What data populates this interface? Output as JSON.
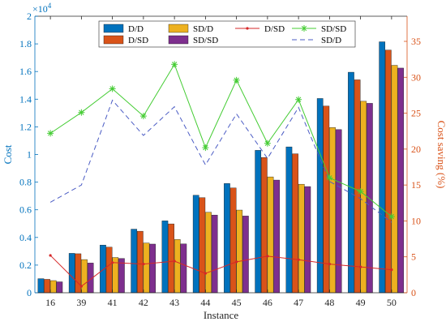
{
  "chart_data": {
    "type": "bar",
    "categories": [
      "16",
      "39",
      "41",
      "42",
      "43",
      "44",
      "45",
      "46",
      "47",
      "48",
      "49",
      "50"
    ],
    "xlabel": "Instance",
    "ylabel_left": "Cost",
    "ylabel_right": "Cost saving (%)",
    "left_axis": {
      "ylim": [
        0,
        20000
      ],
      "ticks": [
        0,
        2000,
        4000,
        6000,
        8000,
        10000,
        12000,
        14000,
        16000,
        18000,
        20000
      ],
      "tick_labels": [
        "0",
        "0.2",
        "0.4",
        "0.6",
        "0.8",
        "1",
        "1.2",
        "1.4",
        "1.6",
        "1.8",
        "2"
      ],
      "exponent_label": "×10",
      "exponent_power": "4",
      "color": "#0072BD"
    },
    "right_axis": {
      "ylim": [
        0,
        38.5
      ],
      "ticks": [
        0,
        5,
        10,
        15,
        20,
        25,
        30,
        35
      ],
      "tick_labels": [
        "0",
        "5",
        "10",
        "15",
        "20",
        "25",
        "30",
        "35"
      ],
      "color": "#D95319"
    },
    "bar_series": [
      {
        "name": "D/D",
        "color": "#0072BD",
        "values": [
          1020,
          2850,
          3450,
          4600,
          5200,
          7050,
          7900,
          10300,
          10550,
          14050,
          15950,
          18150
        ]
      },
      {
        "name": "D/SD",
        "color": "#D95319",
        "values": [
          970,
          2820,
          3300,
          4450,
          4980,
          6880,
          7580,
          9780,
          10050,
          13500,
          15400,
          17550
        ]
      },
      {
        "name": "SD/D",
        "color": "#EDB120",
        "values": [
          880,
          2400,
          2550,
          3600,
          3850,
          5820,
          5980,
          8380,
          7850,
          11950,
          13850,
          16450
        ]
      },
      {
        "name": "SD/SD",
        "color": "#7E2F8E",
        "values": [
          790,
          2150,
          2480,
          3520,
          3530,
          5620,
          5550,
          8150,
          7680,
          11800,
          13700,
          16250
        ]
      }
    ],
    "line_series": [
      {
        "name": "D/SD",
        "color": "#D62728",
        "style": "solid",
        "marker": "dot",
        "values": [
          5.2,
          0.9,
          4.2,
          4.0,
          4.4,
          2.7,
          4.3,
          5.1,
          4.6,
          4.0,
          3.6,
          3.2
        ]
      },
      {
        "name": "SD/D",
        "color": "#4B5CC4",
        "style": "dashed",
        "marker": "none",
        "values": [
          12.6,
          15.0,
          26.8,
          21.9,
          25.9,
          17.8,
          24.9,
          18.7,
          25.8,
          15.5,
          13.1,
          9.8
        ]
      },
      {
        "name": "SD/SD",
        "color": "#44CC33",
        "style": "solid",
        "marker": "asterisk",
        "values": [
          22.2,
          25.1,
          28.4,
          24.6,
          31.8,
          20.2,
          29.6,
          20.8,
          26.9,
          16.0,
          14.1,
          10.6
        ]
      }
    ],
    "legend": {
      "placement": "top-center",
      "items": [
        {
          "label": "D/D",
          "kind": "bar",
          "color": "#0072BD"
        },
        {
          "label": "SD/D",
          "kind": "bar",
          "color": "#EDB120"
        },
        {
          "label": "D/SD",
          "kind": "line-dot",
          "color": "#D62728"
        },
        {
          "label": "SD/SD",
          "kind": "line-asterisk",
          "color": "#44CC33"
        },
        {
          "label": "D/SD",
          "kind": "bar",
          "color": "#D95319"
        },
        {
          "label": "SD/SD",
          "kind": "bar",
          "color": "#7E2F8E"
        },
        {
          "label": "",
          "kind": "blank",
          "color": ""
        },
        {
          "label": "SD/D",
          "kind": "line-dashed",
          "color": "#4B5CC4"
        }
      ]
    },
    "grid": false
  }
}
